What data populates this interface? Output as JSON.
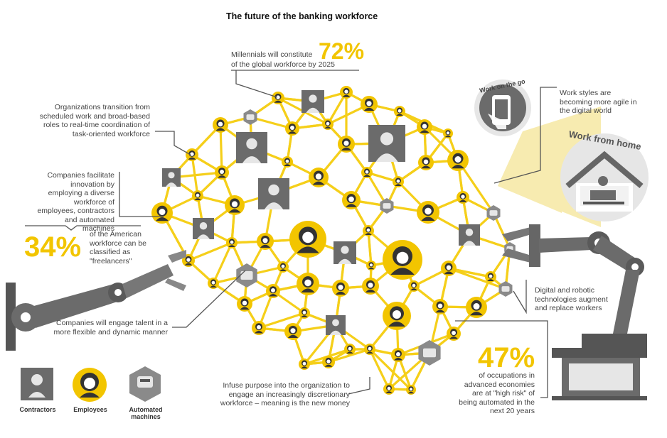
{
  "title": "The future of the banking workforce",
  "callouts": {
    "millennials_prefix": "Millennials will constitute",
    "millennials_pct": "72%",
    "millennials_suffix": "of the global workforce by 2025",
    "organizations": "Organizations transition from scheduled work and broad-based roles to real-time coordination of task-oriented workforce",
    "companies_facilitate": "Companies facilitate innovation by employing a diverse workforce of employees, contractors and automated machines",
    "freelancers_pct": "34%",
    "freelancers_text": "of the American workforce can be classified as \"freelancers\"",
    "flexible": "Companies will engage talent in a more flexible and dynamic manner",
    "purpose": "Infuse purpose into the organization to engage an increasingly discretionary workforce – meaning is the new money",
    "work_styles": "Work styles are becoming more agile in the digital world",
    "digital_robotic": "Digital and robotic technologies augment and replace workers",
    "occupations_pct": "47%",
    "occupations_text": "of occupations in advanced economies are at \"high risk\" of being automated in the next 20 years"
  },
  "badges": {
    "work_on_the_go": "Work on the go",
    "work_from_home": "Work from home"
  },
  "legend": {
    "contractors": "Contractors",
    "employees": "Employees",
    "automated_machines": "Automated machines"
  },
  "colors": {
    "accent_yellow": "#f2c500",
    "link_yellow": "#f5cf1a",
    "dark_gray": "#555555",
    "mid_gray": "#8a8a8a",
    "light_gray": "#e6e6e6"
  }
}
